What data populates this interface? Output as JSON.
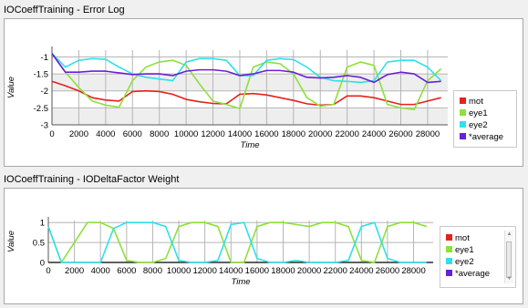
{
  "panels": [
    {
      "title": "IOCoeffTraining - Error Log",
      "legend": [
        "mot",
        "eye1",
        "eye2",
        "*average"
      ]
    },
    {
      "title": "IOCoeffTraining - IODeltaFactor Weight",
      "legend": [
        "mot",
        "eye1",
        "eye2",
        "*average"
      ]
    }
  ],
  "colors": {
    "mot": "#e8201c",
    "eye1": "#8ee03a",
    "eye2": "#2fe0ea",
    "average": "#6a1fd8",
    "grid": "#b5b5b5",
    "band": "#eeeeee",
    "zeroline": "#000000"
  },
  "scrollbar": {
    "up_icon": "triangle-up-icon",
    "down_icon": "triangle-down-icon"
  },
  "chart_data": [
    {
      "type": "line",
      "title": "IOCoeffTraining - Error Log",
      "xlabel": "Time",
      "ylabel": "Value",
      "xlim": [
        0,
        29500
      ],
      "ylim": [
        -3,
        -0.8
      ],
      "x_ticks": [
        0,
        2000,
        4000,
        6000,
        8000,
        10000,
        12000,
        14000,
        16000,
        18000,
        20000,
        22000,
        24000,
        26000,
        28000
      ],
      "y_ticks": [
        -1,
        -1.5,
        -2,
        -2.5,
        -3
      ],
      "legend_position": "right",
      "grid": true,
      "x": [
        0,
        1000,
        2000,
        3000,
        4000,
        5000,
        6000,
        7000,
        8000,
        9000,
        10000,
        11000,
        12000,
        13000,
        14000,
        15000,
        16000,
        17000,
        18000,
        19000,
        20000,
        21000,
        22000,
        23000,
        24000,
        25000,
        26000,
        27000,
        28000,
        29000
      ],
      "series": [
        {
          "name": "mot",
          "values": [
            -1.72,
            -1.85,
            -2.0,
            -2.2,
            -2.27,
            -2.3,
            -2.02,
            -2.0,
            -2.02,
            -2.1,
            -2.25,
            -2.32,
            -2.37,
            -2.38,
            -2.1,
            -2.08,
            -2.12,
            -2.2,
            -2.28,
            -2.38,
            -2.42,
            -2.4,
            -2.15,
            -2.15,
            -2.2,
            -2.3,
            -2.4,
            -2.4,
            -2.3,
            -2.2
          ]
        },
        {
          "name": "eye1",
          "values": [
            -0.9,
            -1.45,
            -1.9,
            -2.3,
            -2.42,
            -2.48,
            -1.7,
            -1.3,
            -1.15,
            -1.1,
            -1.25,
            -1.8,
            -2.3,
            -2.4,
            -2.52,
            -1.3,
            -1.15,
            -1.2,
            -1.5,
            -2.2,
            -2.45,
            -2.4,
            -1.3,
            -1.15,
            -1.25,
            -2.4,
            -2.5,
            -2.55,
            -1.7,
            -1.35
          ]
        },
        {
          "name": "eye2",
          "values": [
            -0.9,
            -1.3,
            -1.1,
            -1.05,
            -1.07,
            -1.3,
            -1.5,
            -1.6,
            -1.65,
            -1.7,
            -1.15,
            -1.05,
            -1.05,
            -1.1,
            -1.55,
            -1.55,
            -1.1,
            -1.05,
            -1.08,
            -1.3,
            -1.6,
            -1.7,
            -1.72,
            -1.75,
            -1.7,
            -1.15,
            -1.1,
            -1.1,
            -1.3,
            -1.7
          ]
        },
        {
          "name": "*average",
          "values": [
            -0.9,
            -1.45,
            -1.45,
            -1.42,
            -1.42,
            -1.47,
            -1.52,
            -1.5,
            -1.5,
            -1.55,
            -1.42,
            -1.38,
            -1.38,
            -1.42,
            -1.55,
            -1.5,
            -1.4,
            -1.4,
            -1.45,
            -1.6,
            -1.62,
            -1.6,
            -1.55,
            -1.6,
            -1.75,
            -1.52,
            -1.45,
            -1.5,
            -1.75,
            -1.72
          ]
        }
      ]
    },
    {
      "type": "line",
      "title": "IOCoeffTraining - IODeltaFactor Weight",
      "xlabel": "Time",
      "ylabel": "Value",
      "xlim": [
        0,
        29500
      ],
      "ylim": [
        0,
        1.05
      ],
      "x_ticks": [
        0,
        2000,
        4000,
        6000,
        8000,
        10000,
        12000,
        14000,
        16000,
        18000,
        20000,
        22000,
        24000,
        26000,
        28000
      ],
      "y_ticks": [
        1,
        0.5,
        0
      ],
      "legend_position": "right",
      "grid": true,
      "x": [
        0,
        1000,
        2000,
        3000,
        4000,
        5000,
        6000,
        7000,
        8000,
        9000,
        10000,
        11000,
        12000,
        13000,
        14000,
        15000,
        16000,
        17000,
        18000,
        19000,
        20000,
        21000,
        22000,
        23000,
        24000,
        25000,
        26000,
        27000,
        28000,
        29000
      ],
      "series": [
        {
          "name": "eye1",
          "values": [
            0.9,
            0.0,
            0.5,
            1.0,
            1.0,
            0.85,
            0.05,
            0.0,
            0.0,
            0.1,
            0.9,
            1.0,
            1.0,
            0.9,
            0.0,
            0.0,
            0.9,
            1.0,
            1.0,
            0.95,
            0.9,
            1.0,
            1.0,
            0.9,
            0.05,
            0.0,
            0.9,
            1.0,
            1.0,
            0.9
          ]
        },
        {
          "name": "eye2",
          "values": [
            0.9,
            0.0,
            0.0,
            0.0,
            0.0,
            0.85,
            1.0,
            1.0,
            1.0,
            0.9,
            0.05,
            0.0,
            0.0,
            0.05,
            0.95,
            1.0,
            0.1,
            0.0,
            0.0,
            0.05,
            0.0,
            0.0,
            0.0,
            0.05,
            0.9,
            1.0,
            0.1,
            0.0,
            0.0,
            0.0
          ]
        }
      ]
    }
  ]
}
